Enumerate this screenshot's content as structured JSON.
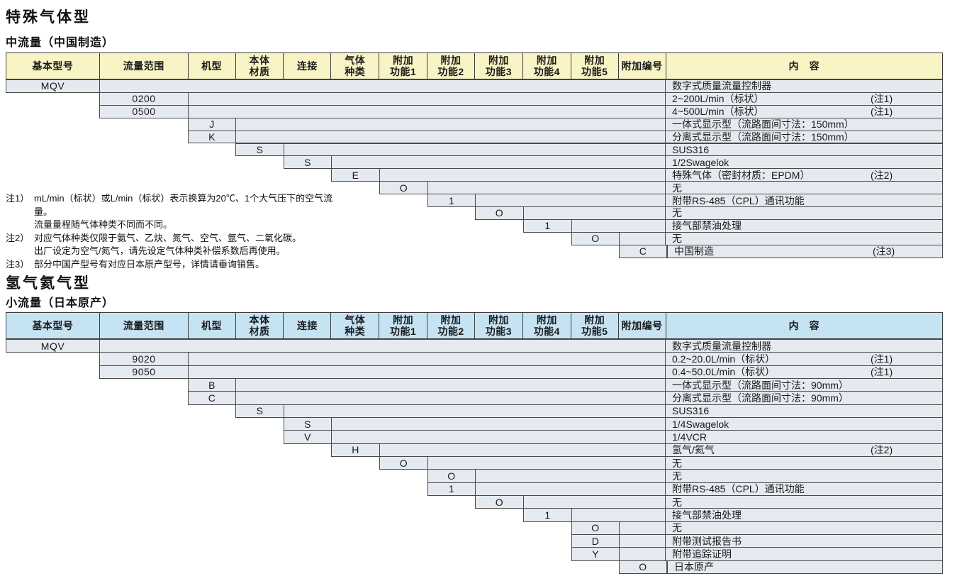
{
  "colors": {
    "header_yellow": "#F8F4C6",
    "header_blue": "#C6E3F4",
    "cell_fill": "#E5EAF1",
    "border": "#4a4a4a"
  },
  "columns": [
    "基本型号",
    "流量范围",
    "机型",
    "本体\n材质",
    "连接",
    "气体\n种类",
    "附加\n功能1",
    "附加\n功能2",
    "附加\n功能3",
    "附加\n功能4",
    "附加\n功能5",
    "附加编号"
  ],
  "content_header": "内　容",
  "sections": [
    {
      "title": "特殊气体型",
      "subtitle": "中流量（中国制造）",
      "header_color": "header_yellow",
      "rows": [
        {
          "col": 0,
          "code": "MQV",
          "desc": "数字式质量流量控制器",
          "note": ""
        },
        {
          "col": 1,
          "code": "0200",
          "desc": "2~200L/min（标状）",
          "note": "(注1)"
        },
        {
          "col": 1,
          "code": "0500",
          "desc": "4~500L/min（标状）",
          "note": "(注1)"
        },
        {
          "col": 2,
          "code": "J",
          "desc": "一体式显示型（流路面间寸法：150mm）",
          "note": ""
        },
        {
          "col": 2,
          "code": "K",
          "desc": "分离式显示型（流路面间寸法：150mm）",
          "note": ""
        },
        {
          "col": 3,
          "code": "S",
          "desc": "SUS316",
          "note": ""
        },
        {
          "col": 4,
          "code": "S",
          "desc": "1/2Swagelok",
          "note": ""
        },
        {
          "col": 5,
          "code": "E",
          "desc": "特殊气体（密封材质：EPDM）",
          "note": "(注2)"
        },
        {
          "col": 6,
          "code": "O",
          "desc": "无",
          "note": ""
        },
        {
          "col": 7,
          "code": "1",
          "desc": "附带RS-485（CPL）通讯功能",
          "note": ""
        },
        {
          "col": 8,
          "code": "O",
          "desc": "无",
          "note": ""
        },
        {
          "col": 9,
          "code": "1",
          "desc": "接气部禁油处理",
          "note": ""
        },
        {
          "col": 10,
          "code": "O",
          "desc": "无",
          "note": ""
        },
        {
          "col": 11,
          "code": "C",
          "desc": "中国制造",
          "note": "(注3)"
        }
      ],
      "notes": [
        {
          "label": "注1）",
          "lines": [
            "mL/min（标状）或L/min（标状）表示换算为20℃、1个大气压下的空气流量。",
            "流量量程随气体种类不同而不同。"
          ]
        },
        {
          "label": "注2）",
          "lines": [
            "对应气体种类仅限于氨气、乙炔、氮气、空气、氩气、二氧化碳。",
            "出厂设定为空气/氮气，请先设定气体种类补偿系数后再使用。"
          ]
        },
        {
          "label": "注3）",
          "lines": [
            "部分中国产型号有对应日本原产型号，详情请垂询销售。"
          ]
        }
      ]
    },
    {
      "title": "氢气氦气型",
      "subtitle": "小流量（日本原产）",
      "header_color": "header_blue",
      "rows": [
        {
          "col": 0,
          "code": "MQV",
          "desc": "数字式质量流量控制器",
          "note": ""
        },
        {
          "col": 1,
          "code": "9020",
          "desc": "0.2~20.0L/min（标状）",
          "note": "(注1)"
        },
        {
          "col": 1,
          "code": "9050",
          "desc": "0.4~50.0L/min（标状）",
          "note": "(注1)"
        },
        {
          "col": 2,
          "code": "B",
          "desc": "一体式显示型（流路面间寸法：90mm）",
          "note": ""
        },
        {
          "col": 2,
          "code": "C",
          "desc": "分离式显示型（流路面间寸法：90mm）",
          "note": ""
        },
        {
          "col": 3,
          "code": "S",
          "desc": "SUS316",
          "note": ""
        },
        {
          "col": 4,
          "code": "S",
          "desc": "1/4Swagelok",
          "note": ""
        },
        {
          "col": 4,
          "code": "V",
          "desc": "1/4VCR",
          "note": ""
        },
        {
          "col": 5,
          "code": "H",
          "desc": "氢气/氦气",
          "note": "(注2)"
        },
        {
          "col": 6,
          "code": "O",
          "desc": "无",
          "note": ""
        },
        {
          "col": 7,
          "code": "O",
          "desc": "无",
          "note": ""
        },
        {
          "col": 7,
          "code": "1",
          "desc": "附带RS-485（CPL）通讯功能",
          "note": ""
        },
        {
          "col": 8,
          "code": "O",
          "desc": "无",
          "note": ""
        },
        {
          "col": 9,
          "code": "1",
          "desc": "接气部禁油处理",
          "note": ""
        },
        {
          "col": 10,
          "code": "O",
          "desc": "无",
          "note": ""
        },
        {
          "col": 10,
          "code": "D",
          "desc": "附带测试报告书",
          "note": ""
        },
        {
          "col": 10,
          "code": "Y",
          "desc": "附带追踪证明",
          "note": ""
        },
        {
          "col": 11,
          "code": "O",
          "desc": "日本原产",
          "note": ""
        }
      ],
      "notes": []
    }
  ]
}
